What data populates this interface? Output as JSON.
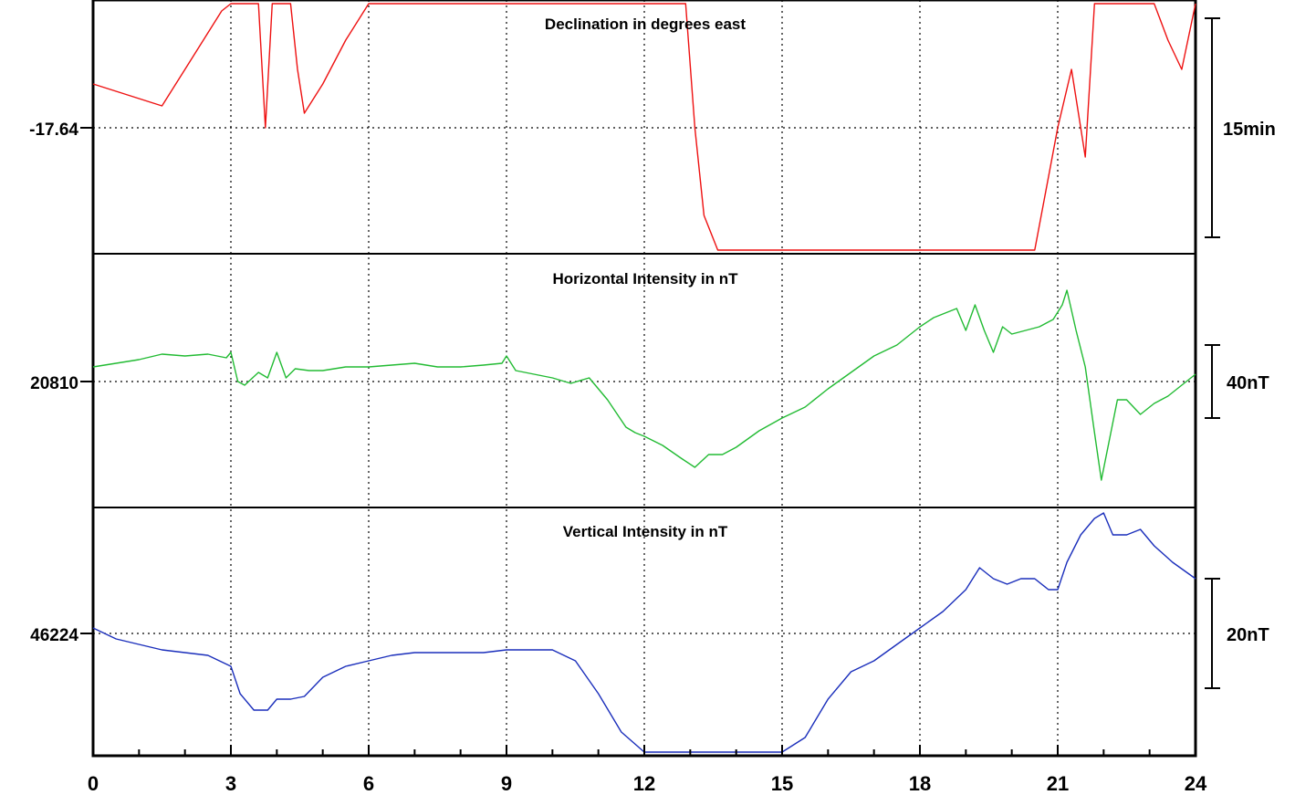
{
  "chart_data": {
    "type": "line",
    "x_range": [
      0,
      24
    ],
    "x_ticks": [
      "0",
      "3",
      "6",
      "9",
      "12",
      "15",
      "18",
      "21",
      "24"
    ],
    "grid": true,
    "panels": [
      {
        "title": "Declination in degrees east",
        "baseline_label": "-17.64",
        "baseline": -17.64,
        "scale_label": "15min",
        "color": "#ee1111",
        "x": [
          0,
          0.5,
          1,
          1.5,
          2,
          2.4,
          2.8,
          3.0,
          3.2,
          3.4,
          3.6,
          3.75,
          3.9,
          4.1,
          4.3,
          4.45,
          4.6,
          5,
          5.5,
          6,
          6.5,
          7,
          7.5,
          8,
          8.5,
          9,
          9.3,
          9.6,
          9.9,
          10.2,
          10.5,
          10.8,
          11.1,
          11.4,
          11.7,
          12,
          12.3,
          12.6,
          12.9,
          13.1,
          13.3,
          13.6,
          13.9,
          14.2,
          14.5,
          14.8,
          15.1,
          15.5,
          16,
          16.5,
          17,
          17.5,
          18,
          18.5,
          19,
          19.5,
          20,
          20.5,
          21,
          21.3,
          21.5,
          21.6,
          21.8,
          22.0,
          22.2,
          22.5,
          22.8,
          23.1,
          23.4,
          23.7,
          24
        ],
        "values": [
          -17.61,
          -17.615,
          -17.62,
          -17.625,
          -17.6,
          -17.58,
          -17.56,
          -17.5,
          -17.4,
          -17.38,
          -17.5,
          -17.64,
          -17.55,
          -17.5,
          -17.5,
          -17.6,
          -17.63,
          -17.61,
          -17.58,
          -17.55,
          -17.52,
          -17.48,
          -17.44,
          -17.42,
          -17.38,
          -17.33,
          -17.28,
          -17.24,
          -17.22,
          -17.2,
          -17.19,
          -17.22,
          -17.2,
          -17.18,
          -17.22,
          -17.28,
          -17.33,
          -17.4,
          -17.5,
          -17.64,
          -17.7,
          -17.76,
          -17.85,
          -17.92,
          -17.98,
          -18.02,
          -18.04,
          -18.06,
          -18.08,
          -18.08,
          -18.08,
          -18.06,
          -18.02,
          -17.98,
          -17.92,
          -17.86,
          -17.8,
          -17.74,
          -17.64,
          -17.6,
          -17.64,
          -17.66,
          -17.55,
          -17.45,
          -17.38,
          -17.42,
          -17.45,
          -17.5,
          -17.58,
          -17.6,
          -17.5
        ]
      },
      {
        "title": "Horizontal Intensity in nT",
        "baseline_label": "20810",
        "baseline": 20810,
        "scale_label": "40nT",
        "color": "#22bb33",
        "x": [
          0,
          0.5,
          1,
          1.5,
          2,
          2.5,
          2.9,
          3.0,
          3.15,
          3.3,
          3.6,
          3.8,
          4.0,
          4.2,
          4.4,
          4.7,
          5,
          5.5,
          6,
          6.5,
          7,
          7.5,
          8,
          8.5,
          8.9,
          9.0,
          9.2,
          9.6,
          10,
          10.4,
          10.8,
          11.2,
          11.6,
          11.8,
          12,
          12.4,
          12.8,
          13.1,
          13.4,
          13.7,
          14,
          14.5,
          15,
          15.5,
          16,
          16.5,
          17,
          17.5,
          18,
          18.3,
          18.6,
          18.8,
          19.0,
          19.2,
          19.4,
          19.6,
          19.8,
          20,
          20.3,
          20.6,
          20.9,
          21.1,
          21.2,
          21.4,
          21.6,
          21.8,
          21.95,
          22.1,
          22.3,
          22.5,
          22.8,
          23.1,
          23.4,
          23.7,
          24
        ],
        "values": [
          20818,
          20820,
          20822,
          20825,
          20824,
          20825,
          20823,
          20826,
          20810,
          20808,
          20815,
          20812,
          20826,
          20812,
          20817,
          20816,
          20816,
          20818,
          20818,
          20819,
          20820,
          20818,
          20818,
          20819,
          20820,
          20824,
          20816,
          20814,
          20812,
          20809,
          20812,
          20800,
          20785,
          20782,
          20780,
          20775,
          20768,
          20763,
          20770,
          20770,
          20774,
          20783,
          20790,
          20796,
          20806,
          20815,
          20824,
          20830,
          20840,
          20845,
          20848,
          20850,
          20838,
          20852,
          20838,
          20826,
          20840,
          20836,
          20838,
          20840,
          20844,
          20852,
          20860,
          20838,
          20818,
          20782,
          20756,
          20775,
          20800,
          20800,
          20792,
          20798,
          20802,
          20808,
          20814
        ]
      },
      {
        "title": "Vertical Intensity in nT",
        "baseline_label": "46224",
        "baseline": 46224,
        "scale_label": "20nT",
        "color": "#1a2ebb",
        "x": [
          0,
          0.5,
          1,
          1.5,
          2,
          2.5,
          3.0,
          3.2,
          3.5,
          3.8,
          4.0,
          4.3,
          4.6,
          5,
          5.5,
          6,
          6.5,
          7,
          7.5,
          8,
          8.5,
          9,
          9.5,
          10,
          10.5,
          11,
          11.5,
          12,
          12.5,
          13,
          13.2,
          13.5,
          14,
          14.5,
          15,
          15.5,
          16,
          16.5,
          17,
          17.5,
          18,
          18.5,
          19,
          19.3,
          19.6,
          19.9,
          20.2,
          20.5,
          20.8,
          21.0,
          21.2,
          21.5,
          21.8,
          22.0,
          22.2,
          22.5,
          22.8,
          23.1,
          23.5,
          24
        ],
        "values": [
          46225,
          46223,
          46222,
          46221,
          46220.5,
          46220,
          46218,
          46213,
          46210,
          46210,
          46212,
          46212,
          46212.5,
          46216,
          46218,
          46219,
          46220,
          46220.5,
          46220.5,
          46220.5,
          46220.5,
          46221,
          46221,
          46221,
          46219,
          46213,
          46206,
          46199,
          46195,
          46190,
          46188,
          46189,
          46190,
          46194,
          46198,
          46205,
          46212,
          46217,
          46219,
          46222,
          46225,
          46228,
          46232,
          46236,
          46234,
          46233,
          46234,
          46234,
          46232,
          46232,
          46237,
          46242,
          46245,
          46246,
          46242,
          46242,
          46243,
          46240,
          46237,
          46234
        ]
      }
    ]
  }
}
